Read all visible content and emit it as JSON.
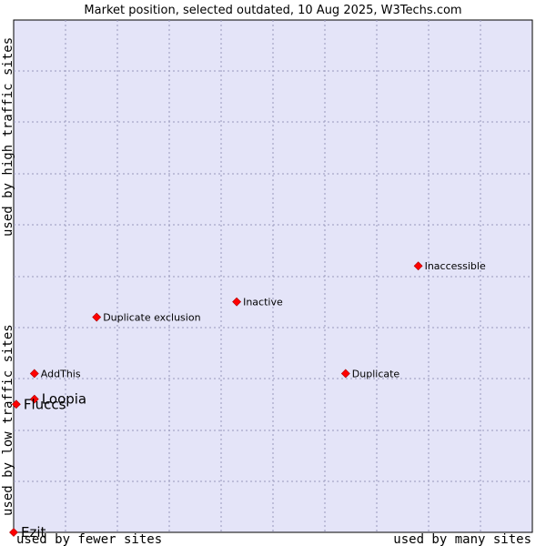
{
  "chart_data": {
    "type": "scatter",
    "title": "Market position, selected outdated, 10 Aug 2025, W3Techs.com",
    "xlabel_left": "used by fewer sites",
    "xlabel_right": "used by many sites",
    "ylabel_low": "used by low traffic sites",
    "ylabel_high": "used by high traffic sites",
    "xlim": [
      0,
      10
    ],
    "ylim": [
      0,
      10
    ],
    "grid": true,
    "colors": {
      "plot_bg": "#e4e4f8",
      "grid": "#9999bb",
      "marker": "#ff0000"
    },
    "points": [
      {
        "label": "Inaccessible",
        "x": 7.8,
        "y": 5.2,
        "size": "small"
      },
      {
        "label": "Inactive",
        "x": 4.3,
        "y": 4.5,
        "size": "small"
      },
      {
        "label": "Duplicate exclusion",
        "x": 1.6,
        "y": 4.2,
        "size": "small"
      },
      {
        "label": "AddThis",
        "x": 0.4,
        "y": 3.1,
        "size": "small"
      },
      {
        "label": "Duplicate",
        "x": 6.4,
        "y": 3.1,
        "size": "small"
      },
      {
        "label": "Loopia",
        "x": 0.4,
        "y": 2.6,
        "size": "large"
      },
      {
        "label": "Fluccs",
        "x": 0.05,
        "y": 2.5,
        "size": "large"
      },
      {
        "label": "Ezit",
        "x": 0.0,
        "y": 0.0,
        "size": "large"
      }
    ]
  }
}
